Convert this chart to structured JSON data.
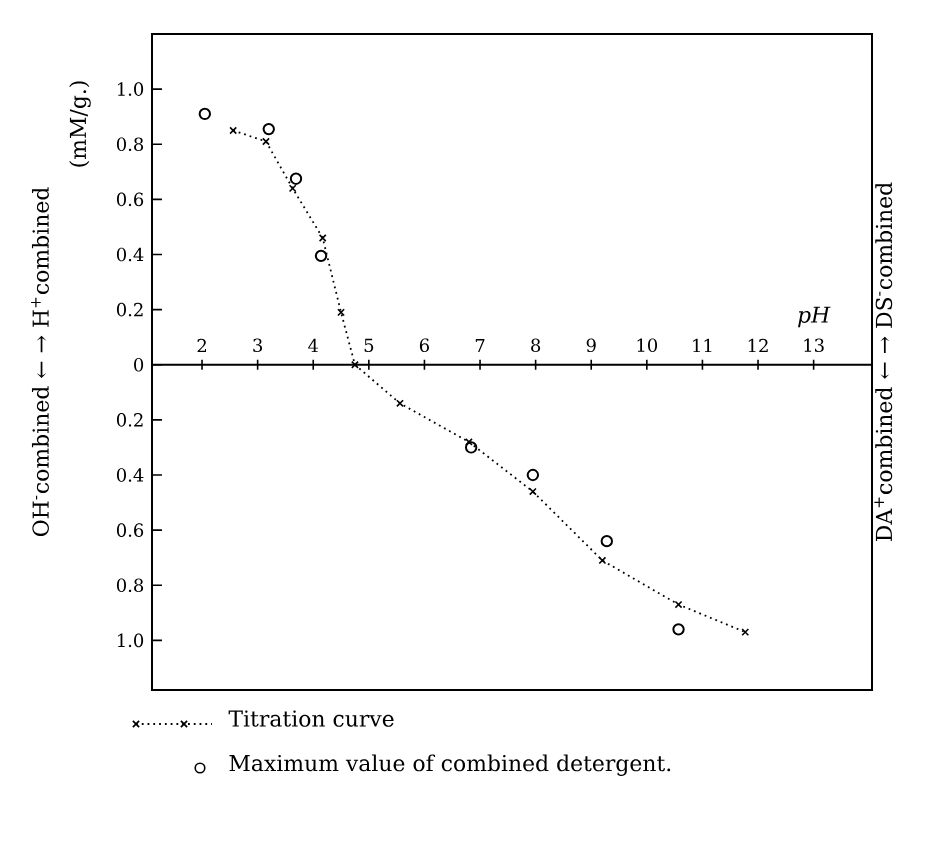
{
  "chart_data": {
    "type": "line",
    "xlabel": "pH",
    "ylabel": "OH$^{-}$combined ← → H$^{+}$combined",
    "y2label": "DA$^{+}$combined ← → DS$^{-}$combined",
    "annotations": [
      "(mM/g.)"
    ],
    "xlim": [
      1.1,
      14.05
    ],
    "ylim": [
      -1.18,
      1.2
    ],
    "xticks": [
      2,
      3,
      4,
      5,
      6,
      7,
      8,
      9,
      10,
      11,
      12,
      13
    ],
    "yticks": [
      {
        "value": 1.0,
        "label": "1.0"
      },
      {
        "value": 0.8,
        "label": "0.8"
      },
      {
        "value": 0.6,
        "label": "0.6"
      },
      {
        "value": 0.4,
        "label": "0.4"
      },
      {
        "value": 0.2,
        "label": "0.2"
      },
      0,
      {
        "value": -0.2,
        "label": "0.2"
      },
      {
        "value": -0.4,
        "label": "0.4"
      },
      {
        "value": -0.6,
        "label": "0.6"
      },
      {
        "value": -0.8,
        "label": "0.8"
      },
      {
        "value": -1.0,
        "label": "1.0"
      }
    ],
    "legend": "bottom",
    "series": [
      {
        "name": "Titration curve",
        "type": "line",
        "color": "#000000",
        "marker": "cross",
        "line_style": "dotted",
        "x": [
          2.56,
          3.15,
          3.63,
          4.17,
          4.5,
          4.75,
          5.56,
          6.8,
          7.95,
          9.2,
          10.57,
          11.77
        ],
        "values": [
          0.85,
          0.81,
          0.64,
          0.46,
          0.19,
          0.0,
          -0.14,
          -0.28,
          -0.46,
          -0.71,
          -0.87,
          -0.97
        ]
      },
      {
        "name": "Maximum value of combined detergent.",
        "type": "scatter",
        "color": "#000000",
        "marker": "circle",
        "x": [
          2.05,
          3.2,
          3.69,
          4.14,
          6.84,
          7.95,
          9.28,
          10.57
        ],
        "values": [
          0.91,
          0.855,
          0.675,
          0.395,
          -0.3,
          -0.4,
          -0.64,
          -0.96
        ]
      }
    ]
  }
}
